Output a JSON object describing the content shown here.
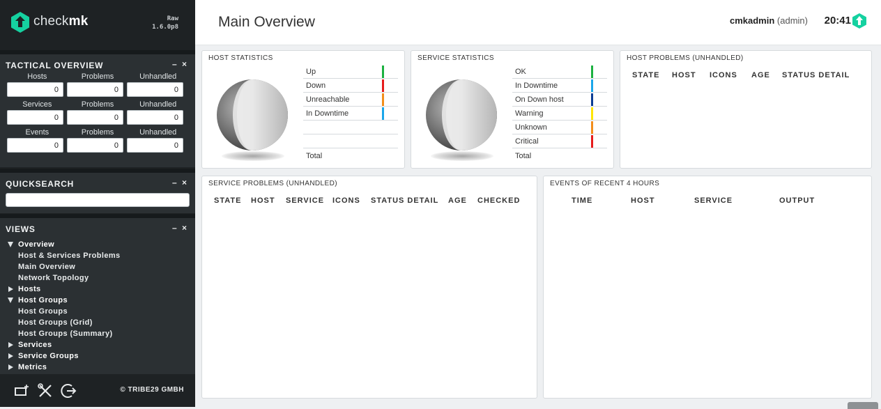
{
  "sidebar": {
    "brand_light": "check",
    "brand_bold": "mk",
    "edition_line1": "Raw",
    "edition_line2": "1.6.0p8",
    "tactical": {
      "title": "TACTICAL OVERVIEW",
      "controls": "– ×",
      "rows": [
        {
          "labels": [
            "Hosts",
            "Problems",
            "Unhandled"
          ],
          "values": [
            "0",
            "0",
            "0"
          ]
        },
        {
          "labels": [
            "Services",
            "Problems",
            "Unhandled"
          ],
          "values": [
            "0",
            "0",
            "0"
          ]
        },
        {
          "labels": [
            "Events",
            "Problems",
            "Unhandled"
          ],
          "values": [
            "0",
            "0",
            "0"
          ]
        }
      ]
    },
    "quicksearch": {
      "title": "QUICKSEARCH",
      "controls": "– ×",
      "value": ""
    },
    "views": {
      "title": "VIEWS",
      "controls": "– ×",
      "items": [
        {
          "label": "Overview",
          "type": "folder-open"
        },
        {
          "label": "Host & Services Problems",
          "type": "link"
        },
        {
          "label": "Main Overview",
          "type": "link"
        },
        {
          "label": "Network Topology",
          "type": "link"
        },
        {
          "label": "Hosts",
          "type": "folder-closed"
        },
        {
          "label": "Host Groups",
          "type": "folder-open"
        },
        {
          "label": "Host Groups",
          "type": "link"
        },
        {
          "label": "Host Groups (Grid)",
          "type": "link"
        },
        {
          "label": "Host Groups (Summary)",
          "type": "link"
        },
        {
          "label": "Services",
          "type": "folder-closed"
        },
        {
          "label": "Service Groups",
          "type": "folder-closed"
        },
        {
          "label": "Metrics",
          "type": "folder-closed"
        }
      ]
    },
    "footer": {
      "copyright": "© TRIBE29 GMBH",
      "icons": [
        "add-snapin-icon",
        "tools-icon",
        "logout-icon"
      ]
    }
  },
  "header": {
    "title": "Main Overview",
    "user": "cmkadmin",
    "role": "(admin)",
    "time": "20:41"
  },
  "host_stats": {
    "title": "HOST STATISTICS",
    "rows": [
      {
        "label": "Up",
        "color": "#13d389"
      },
      {
        "label": "Down",
        "color": "#ff0000"
      },
      {
        "label": "Unreachable",
        "color": "#ff8800"
      },
      {
        "label": "In Downtime",
        "color": "#00aaff"
      }
    ],
    "total": "Total"
  },
  "service_stats": {
    "title": "SERVICE STATISTICS",
    "rows": [
      {
        "label": "OK",
        "color": "#13d389"
      },
      {
        "label": "In Downtime",
        "color": "#00aaff"
      },
      {
        "label": "On Down host",
        "color": "#0b3c94"
      },
      {
        "label": "Warning",
        "color": "#ffff00"
      },
      {
        "label": "Unknown",
        "color": "#ff8800"
      },
      {
        "label": "Critical",
        "color": "#ff0000"
      }
    ],
    "total": "Total"
  },
  "host_problems": {
    "title": "HOST PROBLEMS (UNHANDLED)",
    "columns": [
      "STATE",
      "HOST",
      "ICONS",
      "AGE",
      "STATUS DETAIL"
    ]
  },
  "service_problems": {
    "title": "SERVICE PROBLEMS (UNHANDLED)",
    "columns": [
      "STATE",
      "HOST",
      "SERVICE",
      "ICONS",
      "STATUS DETAIL",
      "AGE",
      "CHECKED"
    ]
  },
  "events": {
    "title": "EVENTS OF RECENT 4 HOURS",
    "columns": [
      "TIME",
      "HOST",
      "SERVICE",
      "OUTPUT"
    ]
  }
}
